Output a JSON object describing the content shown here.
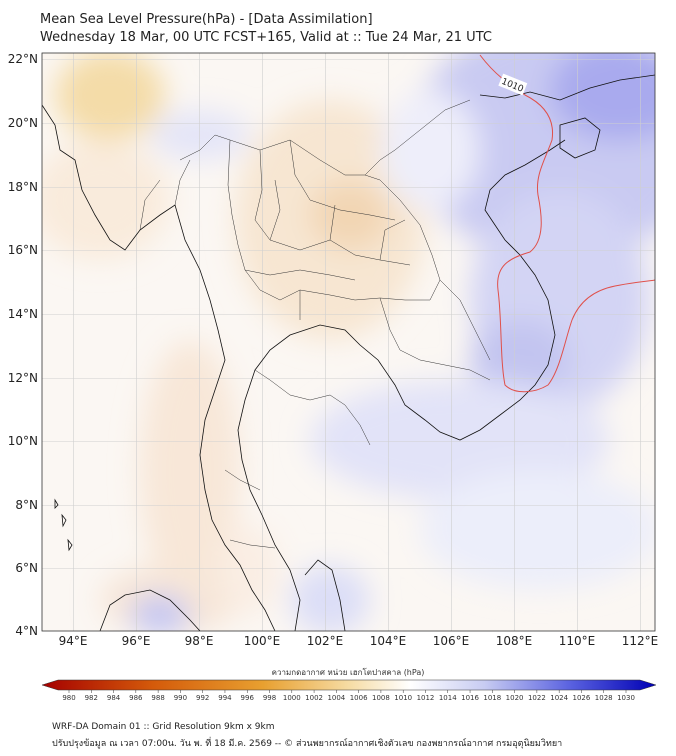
{
  "title": {
    "line1": "Mean Sea Level Pressure(hPa) - [Data Assimilation]",
    "line2": "Wednesday 18 Mar, 00 UTC FCST+165, Valid at :: Tue 24 Mar, 21 UTC"
  },
  "axes": {
    "lat_labels": [
      "22°N",
      "20°N",
      "18°N",
      "16°N",
      "14°N",
      "12°N",
      "10°N",
      "8°N",
      "6°N",
      "4°N"
    ],
    "lon_labels": [
      "94°E",
      "96°E",
      "98°E",
      "100°E",
      "102°E",
      "104°E",
      "106°E",
      "108°E",
      "110°E",
      "112°E"
    ],
    "lat_range": [
      4,
      22
    ],
    "lon_range": [
      93,
      112.5
    ]
  },
  "contour": {
    "label": "1010",
    "color": "#e0504a"
  },
  "colorbar": {
    "title": "ความกดอากาศ หน่วย เฮกโตปาสคาล (hPa)",
    "ticks": [
      "980",
      "982",
      "984",
      "986",
      "988",
      "990",
      "992",
      "994",
      "996",
      "998",
      "1000",
      "1002",
      "1004",
      "1006",
      "1008",
      "1010",
      "1012",
      "1014",
      "1016",
      "1018",
      "1020",
      "1022",
      "1024",
      "1026",
      "1028",
      "1030"
    ],
    "low_color": "#a50000",
    "mid_color": "#ffffff",
    "high_color": "#0000b4"
  },
  "footer": {
    "line1": "WRF-DA Domain 01 :: Grid Resolution 9km x 9km",
    "line2": "ปรับปรุงข้อมูล ณ เวลา 07:00น. วัน พ. ที่ 18 มี.ค. 2569 -- © ส่วนพยากรณ์อากาศเชิงตัวเลข กองพยากรณ์อากาศ กรมอุตุนิยมวิทยา"
  }
}
